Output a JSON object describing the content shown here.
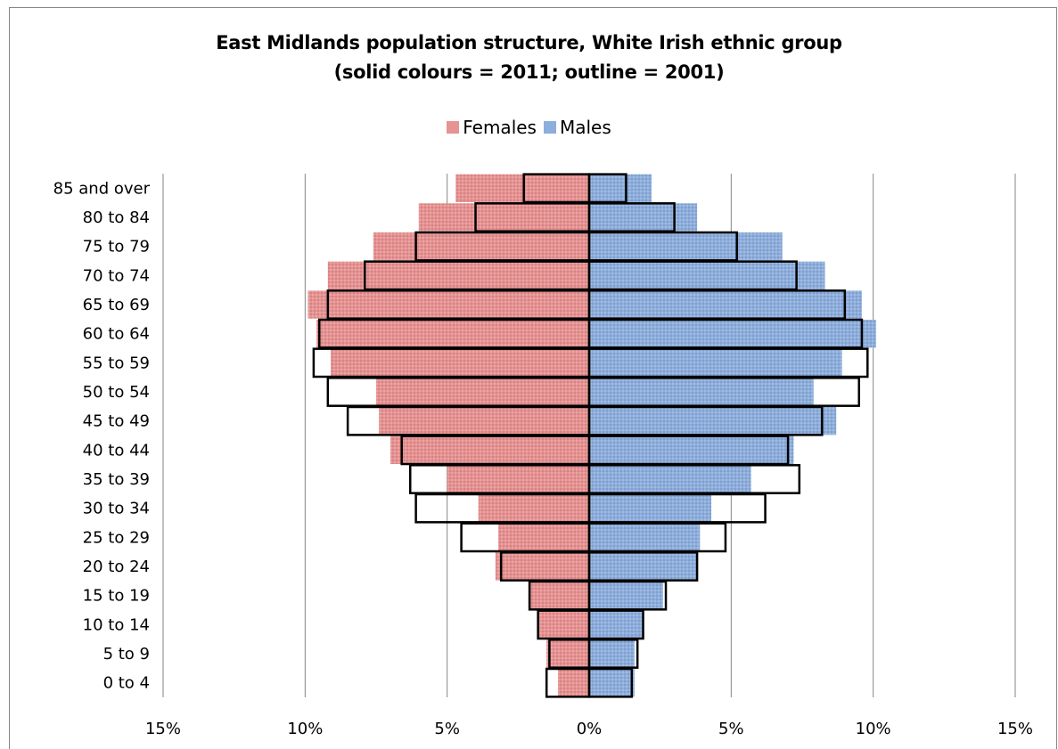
{
  "chart_data": {
    "type": "bar",
    "title": "East Midlands population structure, White Irish ethnic group",
    "subtitle": "(solid colours = 2011; outline = 2001)",
    "legend": [
      {
        "name": "Females",
        "color": "#e59393"
      },
      {
        "name": "Males",
        "color": "#8eaedb"
      }
    ],
    "legend_position": "top",
    "categories": [
      "0 to 4",
      "5 to 9",
      "10 to 14",
      "15 to 19",
      "20 to 24",
      "25 to 29",
      "30 to 34",
      "35 to 39",
      "40 to 44",
      "45 to 49",
      "50 to 54",
      "55 to 59",
      "60 to 64",
      "65 to 69",
      "70 to 74",
      "75 to 79",
      "80 to 84",
      "85 and over"
    ],
    "series": [
      {
        "name": "Females",
        "values": [
          1.1,
          1.5,
          1.8,
          2.1,
          3.3,
          3.2,
          3.9,
          5.0,
          7.0,
          7.4,
          7.5,
          9.1,
          9.6,
          9.9,
          9.2,
          7.6,
          6.0,
          4.7
        ]
      },
      {
        "name": "Males",
        "values": [
          1.6,
          1.6,
          1.9,
          2.6,
          3.8,
          3.9,
          4.3,
          5.7,
          7.2,
          8.7,
          7.9,
          8.9,
          10.1,
          9.6,
          8.3,
          6.8,
          3.8,
          2.2
        ]
      },
      {
        "name": "Females 2001",
        "values": [
          1.5,
          1.4,
          1.8,
          2.1,
          3.1,
          4.5,
          6.1,
          6.3,
          6.6,
          8.5,
          9.2,
          9.7,
          9.5,
          9.2,
          7.9,
          6.1,
          4.0,
          2.3
        ]
      },
      {
        "name": "Males 2001",
        "values": [
          1.5,
          1.7,
          1.9,
          2.7,
          3.8,
          4.8,
          6.2,
          7.4,
          7.0,
          8.2,
          9.5,
          9.8,
          9.6,
          9.0,
          7.3,
          5.2,
          3.0,
          1.3
        ]
      }
    ],
    "x_ticks": [
      "15%",
      "10%",
      "5%",
      "0%",
      "5%",
      "10%",
      "15%"
    ],
    "xlim": [
      -15,
      15
    ],
    "grid": true
  }
}
